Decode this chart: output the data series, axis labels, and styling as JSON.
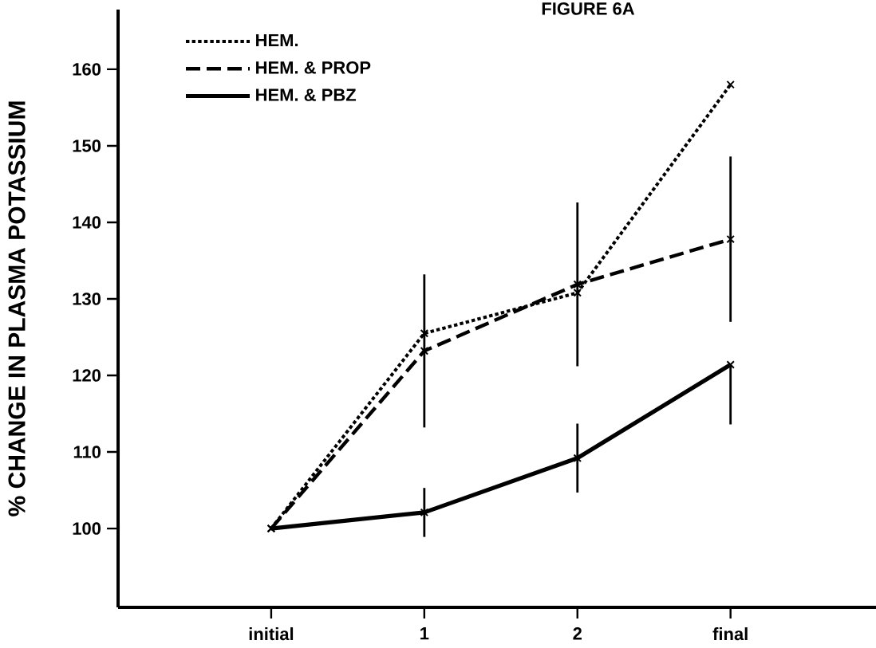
{
  "chart_data": {
    "type": "line",
    "title": "FIGURE 6A",
    "ylabel": "% CHANGE IN PLASMA POTASSIUM",
    "categories": [
      "initial",
      "1",
      "2",
      "final"
    ],
    "series": [
      {
        "name": "HEM.",
        "color": "#000000",
        "line_style": "dotted",
        "values": [
          100,
          125.5,
          130.8,
          158
        ]
      },
      {
        "name": "HEM. & PROP",
        "color": "#000000",
        "line_style": "dashed",
        "values": [
          100,
          123.2,
          131.9,
          137.8
        ],
        "errors": [
          null,
          10,
          10.7,
          10.8
        ]
      },
      {
        "name": "HEM. & PBZ",
        "color": "#000000",
        "line_style": "solid",
        "values": [
          100,
          102.1,
          109.2,
          121.4
        ],
        "errors": [
          null,
          3.2,
          4.5,
          [
            113.6,
            121.4
          ]
        ]
      }
    ],
    "ylim": [
      89.7,
      167.8
    ],
    "yticks": [
      100,
      110,
      120,
      130,
      140,
      150,
      160
    ],
    "legend": "top left",
    "marker": "cross",
    "grid": false
  }
}
